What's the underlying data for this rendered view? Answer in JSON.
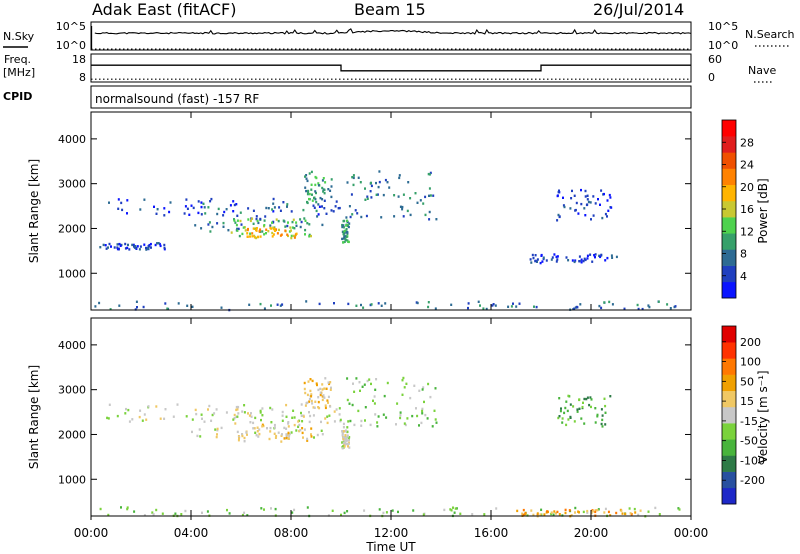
{
  "header": {
    "station": "Adak East (fitACF)",
    "beam": "Beam 15",
    "date": "26/Jul/2014"
  },
  "noise_panel": {
    "left_label": "N.Sky",
    "right_label": "N.Search",
    "left_ticks": [
      "10^5",
      "10^0"
    ],
    "right_ticks": [
      "10^5",
      "10^0"
    ]
  },
  "freq_panel": {
    "left_label_line1": "Freq.",
    "left_label_line2": "[MHz]",
    "left_ticks": [
      "18",
      "8"
    ],
    "right_label": "Nave",
    "right_ticks": [
      "60",
      "0"
    ]
  },
  "cpid_panel": {
    "label": "CPID",
    "text": "normalsound (fast) -157 RF"
  },
  "chart_data": [
    {
      "type": "line",
      "panel": "noise",
      "series": [
        {
          "name": "N.Sky",
          "x": [
            "00:00",
            "06:00",
            "10:00",
            "12:00",
            "14:00",
            "18:00",
            "24:00"
          ],
          "values": [
            1000,
            1000,
            1000,
            3000,
            1000,
            1000,
            1000
          ]
        },
        {
          "name": "N.Search",
          "x": [
            "00:00",
            "24:00"
          ],
          "values": [
            1,
            1
          ]
        }
      ],
      "yscale": "log",
      "ylim": [
        1,
        100000
      ]
    },
    {
      "type": "line",
      "panel": "frequency",
      "series": [
        {
          "name": "Freq.",
          "x": [
            "00:00",
            "10:00",
            "10:00",
            "18:00",
            "18:00",
            "24:00"
          ],
          "values": [
            14,
            14,
            12,
            12,
            14,
            14
          ]
        },
        {
          "name": "Nave",
          "x": [
            "00:00",
            "24:00"
          ],
          "values": [
            6,
            6
          ]
        }
      ],
      "ylim_left": [
        8,
        18
      ],
      "ylim_right": [
        0,
        60
      ]
    },
    {
      "type": "heatmap",
      "panel": "power",
      "ylabel": "Slant Range [km]",
      "xlabel": "Time UT",
      "y_ticks": [
        "1000",
        "2000",
        "3000",
        "4000"
      ],
      "ylim": [
        180,
        4600
      ],
      "x_ticks": [
        "00:00",
        "04:00",
        "08:00",
        "12:00",
        "16:00",
        "20:00",
        "00:00"
      ],
      "xlim": [
        0,
        24
      ],
      "colorbar": {
        "label": "Power [dB]",
        "ticks": [
          "4",
          "8",
          "12",
          "16",
          "20",
          "24",
          "28"
        ],
        "colors": [
          "#0a14ff",
          "#1f3fbf",
          "#2d6b93",
          "#36a06a",
          "#4ed24e",
          "#c8c832",
          "#ffb400",
          "#ff8200",
          "#f05000",
          "#e01e1e",
          "#ff0000"
        ]
      },
      "regions": [
        {
          "t0": 0.6,
          "t1": 10.0,
          "r_low": 2300,
          "r_high": 2700,
          "level": 1
        },
        {
          "t0": 4.0,
          "t1": 9.5,
          "r_low": 1950,
          "r_high": 2600,
          "level": 2
        },
        {
          "t0": 5.5,
          "t1": 8.8,
          "r_low": 1850,
          "r_high": 2250,
          "level": 4
        },
        {
          "t0": 6.2,
          "t1": 8.2,
          "r_low": 1800,
          "r_high": 2050,
          "level": 6
        },
        {
          "t0": 8.5,
          "t1": 9.6,
          "r_low": 2600,
          "r_high": 3300,
          "level": 3
        },
        {
          "t0": 10.0,
          "t1": 13.8,
          "r_low": 2200,
          "r_high": 3300,
          "level": 2
        },
        {
          "t0": 10.0,
          "t1": 10.3,
          "r_low": 1700,
          "r_high": 2200,
          "level": 3
        },
        {
          "t0": 18.6,
          "t1": 20.8,
          "r_low": 2200,
          "r_high": 2900,
          "level": 1
        },
        {
          "t0": 0.0,
          "t1": 24.0,
          "r_low": 200,
          "r_high": 400,
          "level": 2
        },
        {
          "t0": 0.2,
          "t1": 3.0,
          "r_low": 1550,
          "r_high": 1700,
          "level": 1
        },
        {
          "t0": 17.5,
          "t1": 21.0,
          "r_low": 1250,
          "r_high": 1450,
          "level": 1
        }
      ]
    },
    {
      "type": "heatmap",
      "panel": "velocity",
      "ylabel": "Slant Range [km]",
      "xlabel": "Time UT",
      "y_ticks": [
        "1000",
        "2000",
        "3000",
        "4000"
      ],
      "ylim": [
        180,
        4600
      ],
      "x_ticks": [
        "00:00",
        "04:00",
        "08:00",
        "12:00",
        "16:00",
        "20:00",
        "00:00"
      ],
      "xlim": [
        0,
        24
      ],
      "colorbar": {
        "label": "Velocity [m s⁻¹]",
        "ticks": [
          "200",
          "100",
          "50",
          "15",
          "-15",
          "-50",
          "-100",
          "-200"
        ],
        "colors": [
          "#1e28c8",
          "#2850a0",
          "#2d7a46",
          "#48b43c",
          "#7ad23c",
          "#c8c8c8",
          "#f0c864",
          "#f0a000",
          "#ff7800",
          "#ff3200",
          "#e00000"
        ]
      },
      "regions": [
        {
          "t0": 0.6,
          "t1": 10.0,
          "r_low": 2300,
          "r_high": 2700,
          "level": 5
        },
        {
          "t0": 4.0,
          "t1": 9.5,
          "r_low": 1950,
          "r_high": 2600,
          "level": 5
        },
        {
          "t0": 5.5,
          "t1": 8.8,
          "r_low": 1850,
          "r_high": 2250,
          "level": 6
        },
        {
          "t0": 8.5,
          "t1": 9.6,
          "r_low": 2600,
          "r_high": 3300,
          "level": 6
        },
        {
          "t0": 10.0,
          "t1": 13.8,
          "r_low": 2200,
          "r_high": 3300,
          "level": 4
        },
        {
          "t0": 10.0,
          "t1": 10.3,
          "r_low": 1700,
          "r_high": 2200,
          "level": 5
        },
        {
          "t0": 18.6,
          "t1": 20.8,
          "r_low": 2200,
          "r_high": 2900,
          "level": 3
        },
        {
          "t0": 0.0,
          "t1": 24.0,
          "r_low": 200,
          "r_high": 400,
          "level": 4
        },
        {
          "t0": 17.0,
          "t1": 22.0,
          "r_low": 200,
          "r_high": 350,
          "level": 7
        }
      ]
    }
  ]
}
